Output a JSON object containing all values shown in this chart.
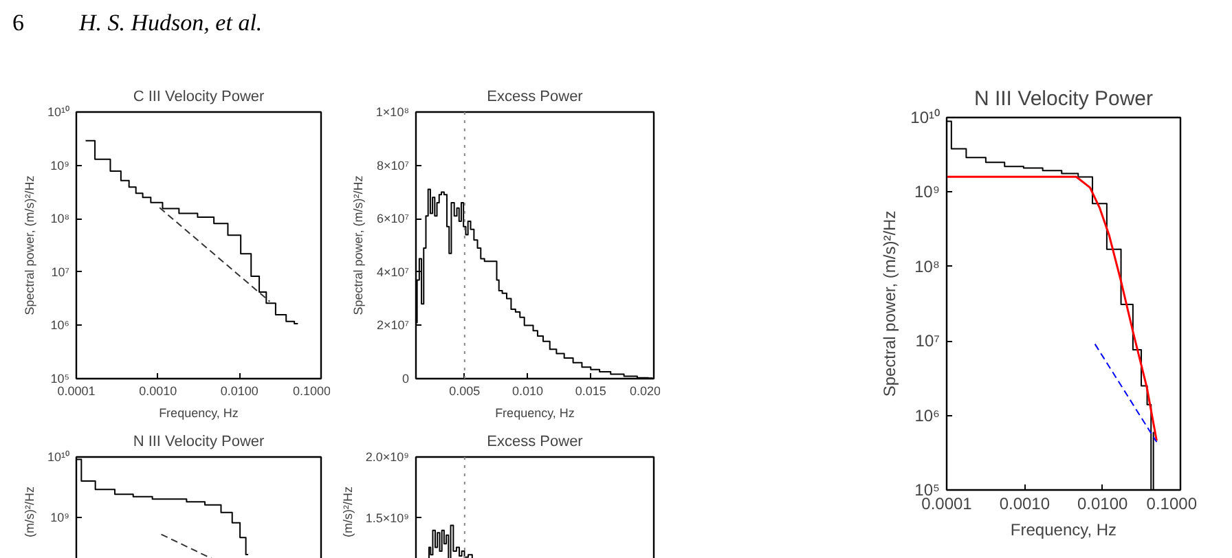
{
  "chart_data": [
    {
      "type": "step",
      "title": "C III Velocity Power",
      "xlabel": "Frequency, Hz",
      "ylabel": "Spectral power, (m/s)²/Hz",
      "log": "xy",
      "annotations": [
        "6",
        "H. S. Hudson, et al."
      ],
      "xlim": [
        0.0001,
        0.1
      ],
      "ylim": [
        100000,
        10000000000
      ],
      "xticks": [
        {
          "value": 0.0001,
          "label": "0.0001"
        },
        {
          "value": 0.001,
          "label": "0.0010"
        },
        {
          "value": 0.01,
          "label": "0.0100"
        },
        {
          "value": 0.1,
          "label": "0.1000"
        }
      ],
      "yticks": [
        {
          "value": 100000,
          "label": "10⁵"
        },
        {
          "value": 1000000,
          "label": "10⁶"
        },
        {
          "value": 10000000,
          "label": "10⁷"
        },
        {
          "value": 100000000,
          "label": "10⁸"
        },
        {
          "value": 1000000000,
          "label": "10⁹"
        },
        {
          "value": 10000000000,
          "label": "10¹⁰"
        }
      ],
      "series": [
        {
          "type": "step",
          "color": "#000000",
          "x": [
            0.00013,
            0.00022,
            0.00031,
            0.0004,
            0.00049,
            0.00059,
            0.00072,
            0.00093,
            0.0014,
            0.00235,
            0.004,
            0.0059,
            0.0088,
            0.0122,
            0.0158,
            0.0193,
            0.0235,
            0.0327,
            0.0426,
            0.052
          ],
          "values": [
            2900000000,
            1300000000,
            780000000,
            520000000,
            390000000,
            300000000,
            250000000,
            200000000,
            155000000,
            126000000,
            107000000,
            81000000,
            49000000,
            22000000,
            8300000,
            4200000,
            2600000,
            1580000,
            1180000,
            1070000
          ]
        },
        {
          "type": "line",
          "color": "#333333",
          "line_style": "dashed",
          "x": [
            0.00105,
            0.0235
          ],
          "values": [
            160000000,
            2800000
          ]
        }
      ]
    },
    {
      "type": "step",
      "title": "Excess Power",
      "xlabel": "Frequency, Hz",
      "ylabel": "Spectral power, (m/s)²/Hz",
      "xlim": [
        0.00114,
        0.02
      ],
      "ylim": [
        0,
        100000000
      ],
      "xticks": [
        {
          "value": 0.005,
          "label": "0.005"
        },
        {
          "value": 0.01,
          "label": "0.010"
        },
        {
          "value": 0.015,
          "label": "0.015"
        },
        {
          "value": 0.02,
          "label": "0.020"
        }
      ],
      "yticks": [
        0,
        {
          "value": 20000000,
          "label": "2×10⁷"
        },
        {
          "value": 40000000,
          "label": "4×10⁷"
        },
        {
          "value": 60000000,
          "label": "6×10⁷"
        },
        {
          "value": 80000000,
          "label": "8×10⁷"
        },
        {
          "value": 100000000,
          "label": "1×10⁸"
        }
      ],
      "ref_lines": [
        {
          "axis": "x",
          "value": 0.005,
          "line_style": "dotted",
          "color": "#888888"
        }
      ],
      "series": [
        {
          "type": "step",
          "color": "#000000",
          "x": [
            0.00114,
            0.00132,
            0.00149,
            0.00167,
            0.00184,
            0.00202,
            0.00219,
            0.00237,
            0.00254,
            0.00272,
            0.00289,
            0.00307,
            0.00325,
            0.00349,
            0.0037,
            0.00384,
            0.00405,
            0.0043,
            0.00447,
            0.00465,
            0.00482,
            0.005,
            0.00518,
            0.00535,
            0.0056,
            0.00588,
            0.00616,
            0.0064,
            0.00675,
            0.00711,
            0.00746,
            0.00763,
            0.00781,
            0.00816,
            0.00851,
            0.00886,
            0.00921,
            0.00956,
            0.00991,
            0.01026,
            0.01061,
            0.01096,
            0.01149,
            0.01202,
            0.01254,
            0.01325,
            0.01395,
            0.01465,
            0.01535,
            0.01605,
            0.01711,
            0.01816,
            0.01921,
            0.01991
          ],
          "values": [
            21000000,
            37000000,
            45000000,
            28000000,
            49000000,
            61000000,
            71000000,
            62000000,
            68000000,
            61000000,
            66000000,
            69000000,
            70000000,
            69000000,
            57000000,
            47000000,
            66000000,
            61000000,
            64000000,
            59000000,
            66000000,
            57000000,
            54000000,
            59000000,
            56000000,
            52000000,
            49000000,
            45000000,
            44000000,
            44000000,
            44000000,
            37000000,
            33000000,
            32000000,
            30000000,
            26000000,
            25000000,
            23000000,
            20000000,
            20000000,
            18000000,
            16000000,
            14000000,
            11000000,
            9400000,
            7700000,
            6000000,
            4300000,
            3400000,
            2600000,
            1700000,
            900000,
            300000,
            200000
          ]
        }
      ]
    },
    {
      "type": "step",
      "title": "N III Velocity Power",
      "ylabel": "(m/s)²/Hz",
      "log": "xy",
      "tick_labels": "y",
      "xlim": [
        0.0001,
        0.1
      ],
      "ylim": [
        150000000,
        10000000000
      ],
      "yticks": [
        {
          "value": 1000000000,
          "label": "10⁹"
        },
        {
          "value": 10000000000,
          "label": "10¹⁰"
        }
      ],
      "series": [
        {
          "type": "step",
          "color": "#000000",
          "x": [
            0.0001,
            0.000133,
            0.00022,
            0.0004,
            0.00062,
            0.00118,
            0.00174,
            0.0029,
            0.0049,
            0.0072,
            0.0092,
            0.0112,
            0.0128
          ],
          "values": [
            9100000000,
            4000000000,
            2900000000,
            2400000000,
            2200000000,
            2000000000,
            2000000000,
            1800000000,
            1600000000,
            1200000000,
            810000000,
            460000000,
            240000000
          ]
        },
        {
          "type": "line",
          "color": "#333333",
          "line_style": "dashed",
          "x": [
            0.0011,
            0.0048
          ],
          "values": [
            520000000,
            200000000
          ]
        }
      ]
    },
    {
      "type": "step",
      "title": "Excess Power",
      "ylabel": "(m/s)²/Hz",
      "tick_labels": "y",
      "xlim": [
        0.00114,
        0.02
      ],
      "ylim": [
        1100000000,
        2000000000
      ],
      "yticks": [
        {
          "value": 1500000000,
          "label": "1.5×10⁹"
        },
        {
          "value": 2000000000,
          "label": "2.0×10⁹"
        }
      ],
      "ref_lines": [
        {
          "axis": "x",
          "value": 0.005,
          "line_style": "dotted",
          "color": "#888888"
        }
      ],
      "series": [
        {
          "type": "step",
          "color": "#000000",
          "x": [
            0.00212,
            0.00223,
            0.00237,
            0.00258,
            0.00275,
            0.00293,
            0.00311,
            0.00328,
            0.00346,
            0.00363,
            0.00381,
            0.00398,
            0.00423,
            0.00447,
            0.00468,
            0.00486,
            0.00511,
            0.00546,
            0.00574
          ],
          "values": [
            1110000000,
            1260000000,
            1200000000,
            1400000000,
            1260000000,
            1380000000,
            1230000000,
            1400000000,
            1290000000,
            1360000000,
            1150000000,
            1440000000,
            1230000000,
            1260000000,
            1190000000,
            1230000000,
            1180000000,
            1200000000,
            1150000000
          ]
        }
      ]
    },
    {
      "type": "step",
      "title": "N III Velocity Power",
      "xlabel": "Frequency, Hz",
      "ylabel": "Spectral power, (m/s)²/Hz",
      "log": "xy",
      "xlim": [
        0.0001,
        0.1
      ],
      "ylim": [
        100000,
        10000000000
      ],
      "xticks": [
        {
          "value": 0.0001,
          "label": "0.0001"
        },
        {
          "value": 0.001,
          "label": "0.0010"
        },
        {
          "value": 0.01,
          "label": "0.0100"
        },
        {
          "value": 0.1,
          "label": "0.1000"
        }
      ],
      "yticks": [
        {
          "value": 100000,
          "label": "10⁵"
        },
        {
          "value": 1000000,
          "label": "10⁶"
        },
        {
          "value": 10000000,
          "label": "10⁷"
        },
        {
          "value": 100000000,
          "label": "10⁸"
        },
        {
          "value": 1000000000,
          "label": "10⁹"
        },
        {
          "value": 10000000000,
          "label": "10¹⁰"
        }
      ],
      "series": [
        {
          "type": "step",
          "color": "#000000",
          "x": [
            0.0001,
            0.000132,
            0.00024,
            0.00042,
            0.00073,
            0.00129,
            0.00226,
            0.00396,
            0.006,
            0.0092,
            0.014,
            0.0213,
            0.0283,
            0.0349,
            0.04,
            0.044,
            0.046
          ],
          "values": [
            8900000000,
            3800000000,
            2900000000,
            2500000000,
            2200000000,
            2100000000,
            1940000000,
            1770000000,
            1590000000,
            700000000,
            170000000,
            31000000,
            7600000,
            2500000,
            1400000,
            100000,
            590000
          ]
        },
        {
          "type": "line",
          "color": "#ff0000",
          "x": [
            0.0001,
            0.0046,
            0.0069,
            0.0092,
            0.0122,
            0.0173,
            0.0246,
            0.037,
            0.0495
          ],
          "values": [
            1600000000,
            1600000000,
            1150000000,
            610000000,
            260000000,
            63000000,
            13300000,
            2400000,
            460000
          ]
        },
        {
          "type": "line",
          "color": "#0000ff",
          "line_style": "dashed",
          "x": [
            0.008,
            0.0495
          ],
          "values": [
            9100000,
            440000
          ]
        }
      ]
    }
  ]
}
